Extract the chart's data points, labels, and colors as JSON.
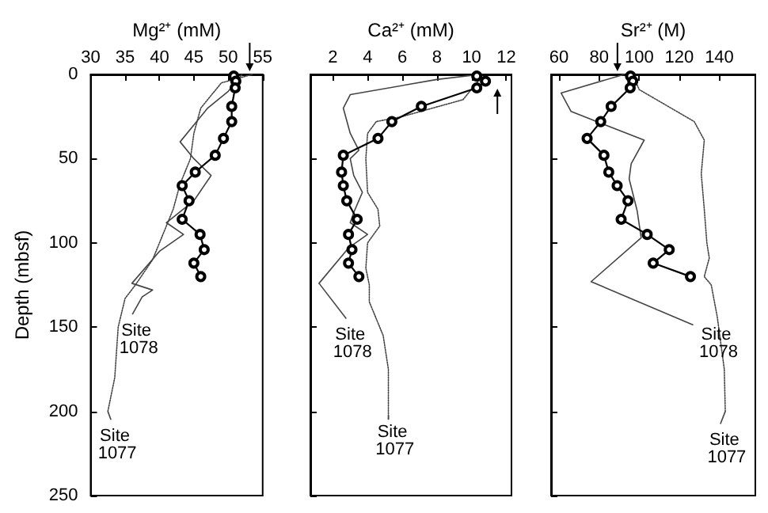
{
  "chart_data": [
    {
      "type": "line",
      "xlabel": "Mg²⁺ (mM)",
      "ylabel": "Depth (mbsf)",
      "xlim": [
        30,
        55
      ],
      "xticks": [
        30,
        35,
        40,
        45,
        50,
        55
      ],
      "ylim": [
        250,
        0
      ],
      "yticks": [
        0,
        50,
        100,
        150,
        200,
        250
      ],
      "series": [
        {
          "color": "#000000",
          "marker": "circle",
          "line_style": "solid",
          "x": [
            50.8,
            51.1,
            51.0,
            50.5,
            50.5,
            49.3,
            48.1,
            45.2,
            43.3,
            44.3,
            43.3,
            45.9,
            46.5,
            45.0,
            46.0
          ],
          "values": [
            1,
            4,
            8,
            19,
            28,
            38,
            48,
            58,
            66,
            75,
            86,
            95,
            104,
            112,
            120
          ]
        },
        {
          "color": "#444444",
          "marker": "none",
          "line_style": "solid",
          "x": [
            52,
            50,
            47,
            43,
            45,
            47.5,
            45,
            41,
            43.5,
            40,
            36,
            39,
            37.5
          ],
          "values": [
            0,
            10,
            20,
            40,
            50,
            60,
            75,
            88,
            95,
            105,
            124,
            128,
            132
          ]
        },
        {
          "color": "#444444",
          "marker": "none",
          "line_style": "dotted",
          "x": [
            53.5,
            49,
            46,
            45,
            44.5,
            43,
            42,
            41,
            39,
            36.5,
            35,
            34,
            33.5,
            32.5
          ],
          "values": [
            0,
            5,
            20,
            35,
            50,
            65,
            80,
            90,
            110,
            125,
            133,
            150,
            180,
            200
          ]
        }
      ],
      "annotations": [
        "Site 1078",
        "Site 1077"
      ]
    },
    {
      "type": "line",
      "xlabel": "Ca²⁺ (mM)",
      "xlim": [
        0.7,
        12.3
      ],
      "xticks": [
        2,
        4,
        6,
        8,
        10,
        12
      ],
      "ylim": [
        250,
        0
      ],
      "yticks": [
        0,
        50,
        100,
        150,
        200,
        250
      ],
      "tick_labels": "x",
      "series": [
        {
          "color": "#000000",
          "marker": "circle",
          "line_style": "solid",
          "x": [
            10.3,
            10.8,
            10.3,
            7.1,
            5.4,
            4.6,
            2.6,
            2.5,
            2.6,
            2.8,
            3.4,
            2.9,
            3.1,
            2.9,
            3.5
          ],
          "values": [
            1,
            4,
            8,
            19,
            28,
            38,
            48,
            58,
            66,
            75,
            86,
            95,
            104,
            112,
            120
          ]
        },
        {
          "color": "#444444",
          "marker": "none",
          "line_style": "solid",
          "x": [
            10.5,
            8,
            3,
            2.6,
            3,
            3.5,
            3.0,
            3.2,
            3.7,
            3.2,
            3.0,
            4,
            2.9,
            1.2
          ],
          "values": [
            0,
            3,
            12,
            20,
            35,
            45,
            50,
            60,
            70,
            82,
            88,
            95,
            103,
            124
          ]
        },
        {
          "color": "#444444",
          "marker": "none",
          "line_style": "dotted",
          "x": [
            10.6,
            10.3,
            9.5,
            6,
            4.5,
            4.0,
            3.9,
            4.0,
            4.6,
            4.7,
            4.0,
            3.9,
            4.1,
            4.1,
            4.9,
            5.2,
            5.2
          ],
          "values": [
            0,
            5,
            15,
            25,
            28,
            35,
            50,
            70,
            80,
            90,
            100,
            115,
            125,
            135,
            155,
            175,
            205
          ]
        }
      ],
      "annotations": [
        "Site 1078",
        "Site 1077"
      ]
    },
    {
      "type": "line",
      "xlabel": "Sr²⁺ (M)",
      "xlim": [
        56,
        158
      ],
      "xticks": [
        60,
        80,
        100,
        120,
        140
      ],
      "ylim": [
        250,
        0
      ],
      "yticks": [
        0,
        50,
        100,
        150,
        200,
        250
      ],
      "tick_labels": "x",
      "series": [
        {
          "color": "#000000",
          "marker": "circle",
          "line_style": "solid",
          "x": [
            95.7,
            96.8,
            95.5,
            86,
            80.8,
            74,
            82.4,
            84.8,
            89,
            94.4,
            91,
            104,
            115,
            107,
            125.6
          ],
          "values": [
            1,
            4,
            8,
            19,
            28,
            38,
            48,
            58,
            66,
            75,
            86,
            95,
            104,
            112,
            120
          ]
        },
        {
          "color": "#444444",
          "marker": "none",
          "line_style": "solid",
          "x": [
            92.5,
            61,
            66,
            102.5,
            96,
            95,
            99,
            101,
            76
          ],
          "values": [
            0,
            11,
            22,
            39,
            53,
            62,
            81,
            97,
            123
          ]
        },
        {
          "color": "#444444",
          "marker": "none",
          "line_style": "dotted",
          "x": [
            97.5,
            100,
            127.5,
            132.5,
            131,
            132.5,
            133.8,
            135,
            132.5,
            136,
            139,
            142.5,
            143
          ],
          "values": [
            2,
            9,
            28,
            39,
            59,
            80,
            100,
            109,
            120,
            125,
            144,
            175,
            200
          ]
        }
      ],
      "annotations": [
        "Site 1078",
        "Site 1077"
      ]
    }
  ]
}
